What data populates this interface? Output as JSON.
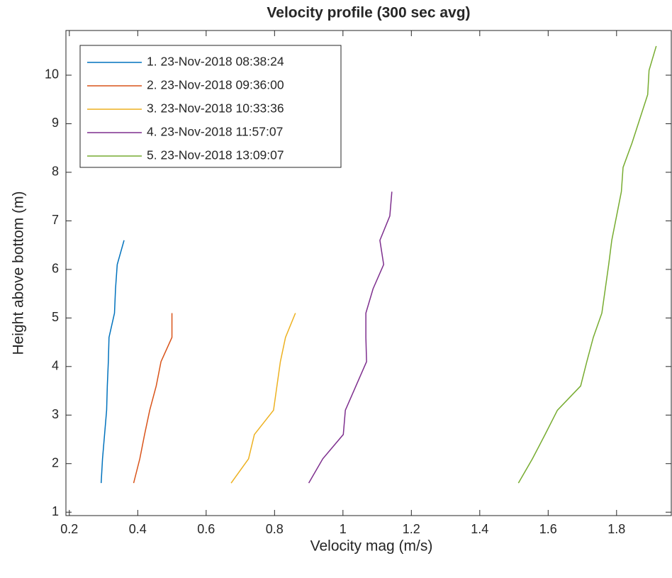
{
  "chart_data": {
    "type": "line",
    "title": "Velocity profile (300 sec avg)",
    "x_label": "Velocity mag (m/s)",
    "y_label": "Height above bottom (m)",
    "xlim": [
      0.19,
      1.96
    ],
    "ylim": [
      0.93,
      10.92
    ],
    "xticks": [
      0.2,
      0.4,
      0.6,
      0.8,
      1,
      1.2,
      1.4,
      1.6,
      1.8
    ],
    "yticks": [
      1,
      2,
      3,
      4,
      5,
      6,
      7,
      8,
      9,
      10
    ],
    "legend": "northwest",
    "series": [
      {
        "name": "1. 23-Nov-2018 08:38:24",
        "color": "#0072bd",
        "x": [
          0.293,
          0.297,
          0.303,
          0.309,
          0.311,
          0.314,
          0.316,
          0.332,
          0.335,
          0.34,
          0.36
        ],
        "values": [
          1.6,
          2.1,
          2.6,
          3.1,
          3.6,
          4.1,
          4.6,
          5.1,
          5.6,
          6.1,
          6.6
        ]
      },
      {
        "name": "2. 23-Nov-2018 09:36:00",
        "color": "#d95319",
        "x": [
          0.388,
          0.406,
          0.42,
          0.435,
          0.454,
          0.468,
          0.5,
          0.5
        ],
        "values": [
          1.6,
          2.1,
          2.6,
          3.1,
          3.6,
          4.1,
          4.6,
          5.1
        ]
      },
      {
        "name": "3. 23-Nov-2018 10:33:36",
        "color": "#edb120",
        "x": [
          0.673,
          0.724,
          0.741,
          0.797,
          0.807,
          0.817,
          0.832,
          0.861
        ],
        "values": [
          1.6,
          2.1,
          2.6,
          3.1,
          3.6,
          4.1,
          4.6,
          5.1
        ]
      },
      {
        "name": "4. 23-Nov-2018 11:57:07",
        "color": "#7e2f8e",
        "x": [
          0.9,
          0.941,
          1.001,
          1.007,
          1.038,
          1.069,
          1.067,
          1.067,
          1.088,
          1.119,
          1.108,
          1.137,
          1.143
        ],
        "values": [
          1.6,
          2.1,
          2.6,
          3.1,
          3.6,
          4.1,
          4.6,
          5.1,
          5.6,
          6.1,
          6.6,
          7.1,
          7.6
        ]
      },
      {
        "name": "5. 23-Nov-2018 13:09:07",
        "color": "#77ac30",
        "x": [
          1.513,
          1.554,
          1.591,
          1.627,
          1.695,
          1.713,
          1.732,
          1.757,
          1.767,
          1.777,
          1.786,
          1.8,
          1.814,
          1.819,
          1.845,
          1.868,
          1.891,
          1.895,
          1.916
        ],
        "values": [
          1.6,
          2.1,
          2.6,
          3.1,
          3.6,
          4.1,
          4.6,
          5.1,
          5.6,
          6.1,
          6.6,
          7.1,
          7.6,
          8.1,
          8.6,
          9.1,
          9.6,
          10.1,
          10.6
        ]
      }
    ]
  }
}
